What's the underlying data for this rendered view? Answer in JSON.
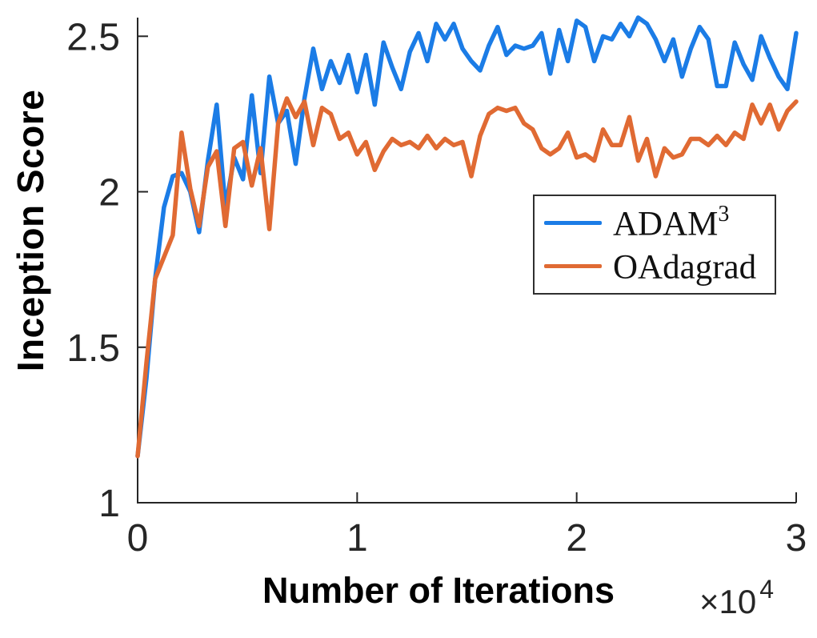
{
  "chart_data": {
    "type": "line",
    "title": "",
    "xlabel": "Number of Iterations",
    "ylabel": "Inception Score",
    "x_multiplier": {
      "prefix": "×10",
      "exponent": "4"
    },
    "xlim": [
      0,
      3
    ],
    "ylim": [
      1,
      2.56
    ],
    "grid": false,
    "axis_color": "#262626",
    "x_ticks": {
      "values": [
        0,
        1,
        2,
        3
      ],
      "labels": [
        "0",
        "1",
        "2",
        "3"
      ]
    },
    "y_ticks": {
      "values": [
        1,
        1.5,
        2,
        2.5
      ],
      "labels": [
        "1",
        "1.5",
        "2",
        "2.5"
      ]
    },
    "x_start": 0,
    "x_step": 0.04,
    "x_units_note": "x values are in units of 10^4 iterations",
    "legend": {
      "position": "middle-right",
      "entries": [
        {
          "base": "ADAM",
          "sup": "3"
        },
        {
          "base": "OAdagrad",
          "sup": ""
        }
      ]
    },
    "series": [
      {
        "name": "ADAM³",
        "color": "#1b7ce6",
        "line_width": 5.5,
        "values": [
          1.15,
          1.4,
          1.72,
          1.95,
          2.05,
          2.06,
          2.0,
          1.87,
          2.1,
          2.28,
          1.95,
          2.11,
          2.04,
          2.31,
          2.06,
          2.37,
          2.22,
          2.26,
          2.09,
          2.3,
          2.46,
          2.33,
          2.42,
          2.35,
          2.44,
          2.32,
          2.44,
          2.28,
          2.48,
          2.4,
          2.33,
          2.45,
          2.51,
          2.42,
          2.54,
          2.49,
          2.54,
          2.46,
          2.42,
          2.39,
          2.47,
          2.53,
          2.44,
          2.47,
          2.46,
          2.47,
          2.51,
          2.38,
          2.52,
          2.42,
          2.55,
          2.53,
          2.42,
          2.5,
          2.49,
          2.54,
          2.5,
          2.56,
          2.54,
          2.49,
          2.42,
          2.49,
          2.37,
          2.46,
          2.53,
          2.49,
          2.34,
          2.34,
          2.48,
          2.41,
          2.36,
          2.5,
          2.43,
          2.37,
          2.33,
          2.51
        ]
      },
      {
        "name": "OAdagrad",
        "color": "#e06a33",
        "line_width": 5.5,
        "values": [
          1.15,
          1.45,
          1.72,
          1.79,
          1.86,
          2.19,
          2.01,
          1.89,
          2.08,
          2.13,
          1.89,
          2.14,
          2.16,
          2.02,
          2.14,
          1.88,
          2.22,
          2.3,
          2.24,
          2.29,
          2.15,
          2.27,
          2.25,
          2.17,
          2.19,
          2.12,
          2.16,
          2.07,
          2.13,
          2.17,
          2.15,
          2.16,
          2.14,
          2.18,
          2.14,
          2.17,
          2.15,
          2.16,
          2.05,
          2.18,
          2.25,
          2.27,
          2.26,
          2.27,
          2.22,
          2.2,
          2.14,
          2.12,
          2.14,
          2.19,
          2.11,
          2.12,
          2.1,
          2.2,
          2.15,
          2.15,
          2.24,
          2.1,
          2.17,
          2.05,
          2.14,
          2.11,
          2.12,
          2.17,
          2.17,
          2.15,
          2.18,
          2.15,
          2.19,
          2.17,
          2.28,
          2.22,
          2.28,
          2.2,
          2.26,
          2.29
        ]
      }
    ]
  }
}
